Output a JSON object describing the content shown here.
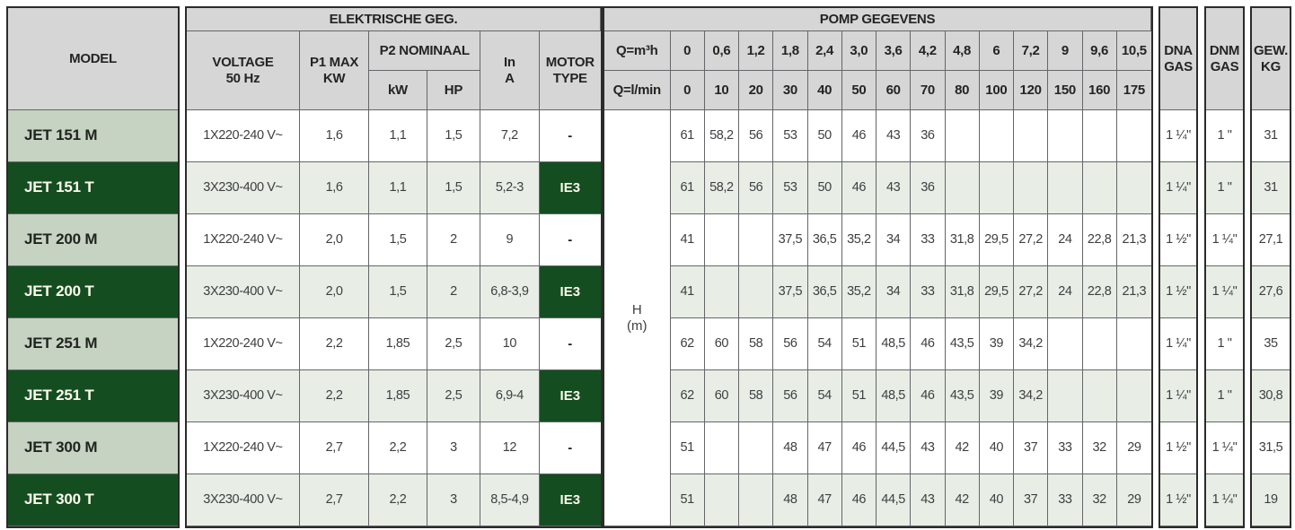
{
  "table": {
    "headers": {
      "model": "MODEL",
      "electrical_group": "ELEKTRISCHE GEG.",
      "pump_group": "POMP GEGEVENS",
      "voltage": "VOLTAGE\n50 Hz",
      "p1_max": "P1 MAX\nKW",
      "p2_nominal": "P2 NOMINAAL",
      "p2_kw": "kW",
      "p2_hp": "HP",
      "in_a": "In\nA",
      "motor_type": "MOTOR\nTYPE",
      "q_m3h": "Q=m³h",
      "q_lmin": "Q=l/min",
      "h_m": "H\n(m)",
      "dna_gas": "DNA\nGAS",
      "dnm_gas": "DNM\nGAS",
      "gew_kg": "GEW.\nKG"
    },
    "flow_m3h": [
      "0",
      "0,6",
      "1,2",
      "1,8",
      "2,4",
      "3,0",
      "3,6",
      "4,2",
      "4,8",
      "6",
      "7,2",
      "9",
      "9,6",
      "10,5"
    ],
    "flow_lmin": [
      "0",
      "10",
      "20",
      "30",
      "40",
      "50",
      "60",
      "70",
      "80",
      "100",
      "120",
      "150",
      "160",
      "175"
    ],
    "rows": [
      {
        "model": "JET 151 M",
        "variant": "M",
        "voltage": "1X220-240 V~",
        "p1_max_kw": "1,6",
        "p2_kw": "1,1",
        "p2_hp": "1,5",
        "in_a": "7,2",
        "motor_type": "-",
        "h_values": [
          "61",
          "58,2",
          "56",
          "53",
          "50",
          "46",
          "43",
          "36",
          "",
          "",
          "",
          "",
          "",
          ""
        ],
        "dna_gas": "1 ¼\"",
        "dnm_gas": "1 \"",
        "gew_kg": "31"
      },
      {
        "model": "JET 151 T",
        "variant": "T",
        "voltage": "3X230-400 V~",
        "p1_max_kw": "1,6",
        "p2_kw": "1,1",
        "p2_hp": "1,5",
        "in_a": "5,2-3",
        "motor_type": "IE3",
        "h_values": [
          "61",
          "58,2",
          "56",
          "53",
          "50",
          "46",
          "43",
          "36",
          "",
          "",
          "",
          "",
          "",
          ""
        ],
        "dna_gas": "1 ¼\"",
        "dnm_gas": "1 \"",
        "gew_kg": "31"
      },
      {
        "model": "JET 200 M",
        "variant": "M",
        "voltage": "1X220-240 V~",
        "p1_max_kw": "2,0",
        "p2_kw": "1,5",
        "p2_hp": "2",
        "in_a": "9",
        "motor_type": "-",
        "h_values": [
          "41",
          "",
          "",
          "37,5",
          "36,5",
          "35,2",
          "34",
          "33",
          "31,8",
          "29,5",
          "27,2",
          "24",
          "22,8",
          "21,3"
        ],
        "dna_gas": "1 ½\"",
        "dnm_gas": "1 ¼\"",
        "gew_kg": "27,1"
      },
      {
        "model": "JET 200 T",
        "variant": "T",
        "voltage": "3X230-400 V~",
        "p1_max_kw": "2,0",
        "p2_kw": "1,5",
        "p2_hp": "2",
        "in_a": "6,8-3,9",
        "motor_type": "IE3",
        "h_values": [
          "41",
          "",
          "",
          "37,5",
          "36,5",
          "35,2",
          "34",
          "33",
          "31,8",
          "29,5",
          "27,2",
          "24",
          "22,8",
          "21,3"
        ],
        "dna_gas": "1 ½\"",
        "dnm_gas": "1 ¼\"",
        "gew_kg": "27,6"
      },
      {
        "model": "JET 251 M",
        "variant": "M",
        "voltage": "1X220-240 V~",
        "p1_max_kw": "2,2",
        "p2_kw": "1,85",
        "p2_hp": "2,5",
        "in_a": "10",
        "motor_type": "-",
        "h_values": [
          "62",
          "60",
          "58",
          "56",
          "54",
          "51",
          "48,5",
          "46",
          "43,5",
          "39",
          "34,2",
          "",
          "",
          ""
        ],
        "dna_gas": "1 ¼\"",
        "dnm_gas": "1 \"",
        "gew_kg": "35"
      },
      {
        "model": "JET 251 T",
        "variant": "T",
        "voltage": "3X230-400 V~",
        "p1_max_kw": "2,2",
        "p2_kw": "1,85",
        "p2_hp": "2,5",
        "in_a": "6,9-4",
        "motor_type": "IE3",
        "h_values": [
          "62",
          "60",
          "58",
          "56",
          "54",
          "51",
          "48,5",
          "46",
          "43,5",
          "39",
          "34,2",
          "",
          "",
          ""
        ],
        "dna_gas": "1 ¼\"",
        "dnm_gas": "1 \"",
        "gew_kg": "30,8"
      },
      {
        "model": "JET 300 M",
        "variant": "M",
        "voltage": "1X220-240 V~",
        "p1_max_kw": "2,7",
        "p2_kw": "2,2",
        "p2_hp": "3",
        "in_a": "12",
        "motor_type": "-",
        "h_values": [
          "51",
          "",
          "",
          "48",
          "47",
          "46",
          "44,5",
          "43",
          "42",
          "40",
          "37",
          "33",
          "32",
          "29"
        ],
        "dna_gas": "1 ½\"",
        "dnm_gas": "1 ¼\"",
        "gew_kg": "31,5"
      },
      {
        "model": "JET 300 T",
        "variant": "T",
        "voltage": "3X230-400 V~",
        "p1_max_kw": "2,7",
        "p2_kw": "2,2",
        "p2_hp": "3",
        "in_a": "8,5-4,9",
        "motor_type": "IE3",
        "h_values": [
          "51",
          "",
          "",
          "48",
          "47",
          "46",
          "44,5",
          "43",
          "42",
          "40",
          "37",
          "33",
          "32",
          "29"
        ],
        "dna_gas": "1 ½\"",
        "dnm_gas": "1 ¼\"",
        "gew_kg": "19"
      }
    ]
  },
  "colors": {
    "header_bg": "#d5d6d5",
    "brand_dark_green": "#144e20",
    "model_light_green": "#c6d2c2",
    "row_tint_green": "#e8eee5",
    "grid_line": "#64666a",
    "outer_border": "#2a2b2a"
  }
}
